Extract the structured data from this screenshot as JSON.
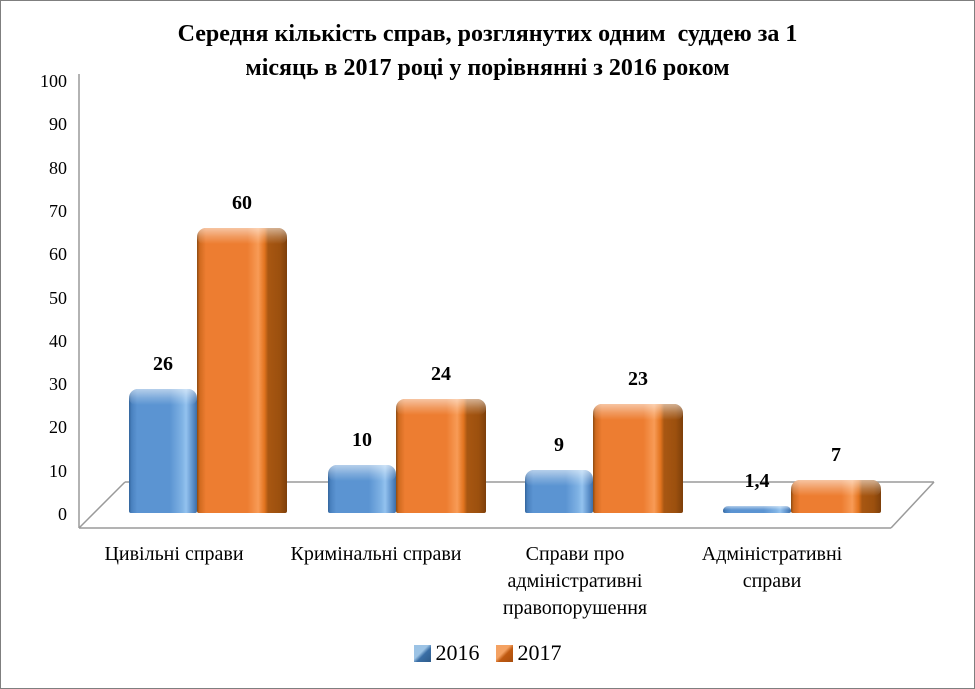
{
  "window": {
    "background": "#ffffff",
    "border_color": "#7f7f7f"
  },
  "chart_data": {
    "type": "bar",
    "style": "3d-clustered-rounded",
    "title": "Середня кількість справ, розглянутих одним суддею за 1 місяць в 2017 році у порівнянні з 2016 роком",
    "title_lines": [
      "Середня кількість справ, розглянутих одним  суддею за 1",
      "місяць в 2017 році у порівнянні з 2016 роком"
    ],
    "categories": [
      "Цивільні справи",
      "Кримінальні справи",
      "Справи про адміністративні правопорушення",
      "Адміністративні справи"
    ],
    "series": [
      {
        "name": "2016",
        "color": "#5B94D2",
        "values": [
          26,
          10,
          9,
          1.4
        ],
        "labels": [
          "26",
          "10",
          "9",
          "1,4"
        ]
      },
      {
        "name": "2017",
        "color": "#ED7D31",
        "values": [
          60,
          24,
          23,
          7
        ],
        "labels": [
          "60",
          "24",
          "23",
          "7"
        ]
      }
    ],
    "xlabel": "",
    "ylabel": "",
    "ylim": [
      0,
      100
    ],
    "ytick_step": 10,
    "ytick_labels": [
      "0",
      "10",
      "20",
      "30",
      "40",
      "50",
      "60",
      "70",
      "80",
      "90",
      "100"
    ],
    "grid": false,
    "legend_position": "bottom",
    "axis_color": "#9a9a9a",
    "value_label_color": "#000000"
  }
}
